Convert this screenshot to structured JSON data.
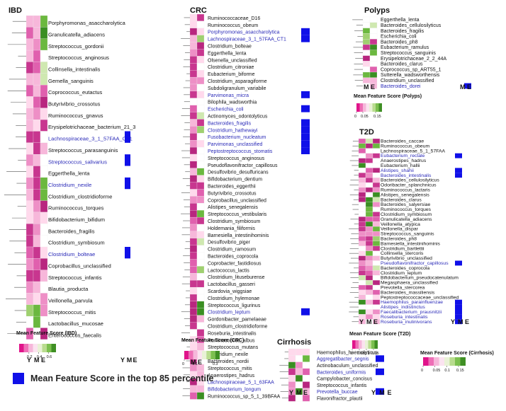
{
  "legend_text": "Mean Feature Score in the top 85 percentile",
  "colors": {
    "top85": "#1010e8",
    "highlight_label": "#2a2ab8",
    "normal_label": "#111111"
  },
  "chart_data": [
    {
      "type": "heatmap",
      "title": "IBD",
      "columns": [
        "Y",
        "M",
        "E"
      ],
      "colorbar_title": "Mean Feature Score\n(IBD)",
      "colorbar_ticks": [
        "0.2",
        "0.4",
        "0.6"
      ],
      "colorbar_range": [
        0,
        0.75
      ],
      "rows": [
        [
          "Porphyromonas_asaccharolytica",
          0
        ],
        [
          "Granulicatella_adiacens",
          0
        ],
        [
          "Streptococcus_gordonii",
          0
        ],
        [
          "Streptococcus_anginosus",
          0
        ],
        [
          "Collinsella_intestinalis",
          0
        ],
        [
          "Gemella_sanguinis",
          0
        ],
        [
          "Coprococcus_eutactus",
          0
        ],
        [
          "Butyrivibrio_crossotus",
          0
        ],
        [
          "Ruminococcus_gnavus",
          0
        ],
        [
          "Erysipelotrichaceae_bacterium_21_3",
          0
        ],
        [
          "Lachnospiraceae_3_1_57FAA_CT1",
          1
        ],
        [
          "Streptococcus_parasanguinis",
          0
        ],
        [
          "Streptococcus_salivarius",
          1
        ],
        [
          "Eggerthella_lenta",
          0
        ],
        [
          "Clostridium_nexile",
          1
        ],
        [
          "Clostridium_clostridioforme",
          0
        ],
        [
          "Ruminococcus_torques",
          0
        ],
        [
          "Bifidobacterium_bifidum",
          0
        ],
        [
          "Bacteroides_fragilis",
          0
        ],
        [
          "Clostridium_symbiosum",
          0
        ],
        [
          "Clostridium_bolteae",
          1
        ],
        [
          "Coprobacillus_unclassified",
          0
        ],
        [
          "Streptococcus_infantis",
          0
        ],
        [
          "Blautia_producta",
          0
        ],
        [
          "Veillonella_parvula",
          0
        ],
        [
          "Streptococcus_mitis",
          0
        ],
        [
          "Lactobacillus_mucosae",
          0
        ],
        [
          "Enterococcus_faecalis",
          0
        ]
      ]
    },
    {
      "type": "heatmap",
      "title": "CRC",
      "columns": [
        "M",
        "E"
      ],
      "colorbar_title": "Mean Feature Score\n(CRC)",
      "colorbar_ticks": [
        "0",
        "0.1",
        "0.3"
      ],
      "colorbar_range": [
        0,
        0.35
      ],
      "rows": [
        [
          "Ruminococcaceae_D16",
          0
        ],
        [
          "Ruminococcus_obeum",
          0
        ],
        [
          "Porphyromonas_asaccharolytica",
          1
        ],
        [
          "Lachnospiraceae_3_1_57FAA_CT1",
          1
        ],
        [
          "Clostridium_bolteae",
          0
        ],
        [
          "Eggerthella_lenta",
          0
        ],
        [
          "Olsenella_unclassified",
          0
        ],
        [
          "Clostridium_citroniae",
          0
        ],
        [
          "Eubacterium_biforme",
          0
        ],
        [
          "Clostridium_asparagiforme",
          0
        ],
        [
          "Subdoligranulum_variabile",
          0
        ],
        [
          "Parvimonas_micra",
          1
        ],
        [
          "Bilophila_wadsworthia",
          0
        ],
        [
          "Escherichia_coli",
          1
        ],
        [
          "Actinomyces_odontolyticus",
          0
        ],
        [
          "Bacteroides_fragilis",
          1
        ],
        [
          "Clostridium_hathewayi",
          1
        ],
        [
          "Fusobacterium_nucleatum",
          1
        ],
        [
          "Parvimonas_unclassified",
          1
        ],
        [
          "Peptostreptococcus_stomatis",
          1
        ],
        [
          "Streptococcus_anginosus",
          0
        ],
        [
          "Pseudoflavonifractor_capillosus",
          0
        ],
        [
          "Desulfovibrio_desulfuricans",
          0
        ],
        [
          "Bifidobacterium_dentium",
          0
        ],
        [
          "Bacteroides_eggerthii",
          0
        ],
        [
          "Butyrivibrio_crossotus",
          0
        ],
        [
          "Coprobacillus_unclassified",
          0
        ],
        [
          "Alistipes_senegalensis",
          0
        ],
        [
          "Streptococcus_vestibularis",
          0
        ],
        [
          "Clostridium_symbiosum",
          0
        ],
        [
          "Holdemania_filiformis",
          0
        ],
        [
          "Barnesiella_intestinihominis",
          0
        ],
        [
          "Desulfovibrio_piger",
          0
        ],
        [
          "Clostridium_ramosum",
          0
        ],
        [
          "Bacteroides_coprocola",
          0
        ],
        [
          "Coprobacter_fastidiosus",
          0
        ],
        [
          "Lactococcus_lactis",
          0
        ],
        [
          "Clostridium_lituseburense",
          0
        ],
        [
          "Lactobacillus_gasseri",
          0
        ],
        [
          "Scardovia_wiggsiae",
          0
        ],
        [
          "Clostridium_hylemonae",
          0
        ],
        [
          "Streptococcus_ligurinus",
          0
        ],
        [
          "Clostridium_leptum",
          1
        ],
        [
          "Gordonibacter_pamelaeae",
          0
        ],
        [
          "Clostridium_clostridioforme",
          0
        ],
        [
          "Roseburia_intestinalis",
          0
        ],
        [
          "Ruminococcus_albus",
          0
        ],
        [
          "Streptococcus_mutans",
          0
        ],
        [
          "Clostridium_nexile",
          0
        ],
        [
          "Bacteroides_nordii",
          0
        ],
        [
          "Streptococcus_mitis",
          0
        ],
        [
          "Anaerostipes_hadrus",
          0
        ],
        [
          "Lachnospiraceae_5_1_63FAA",
          1
        ],
        [
          "Bifidobacterium_longum",
          1
        ],
        [
          "Ruminococcus_sp_5_1_39BFAA",
          0
        ]
      ]
    },
    {
      "type": "heatmap",
      "title": "Polyps",
      "columns": [
        "M",
        "E"
      ],
      "colorbar_title": "Mean Feature Score (Polyps)",
      "colorbar_ticks": [
        "0",
        "0.05",
        "0.15"
      ],
      "colorbar_range": [
        0,
        0.2
      ],
      "rows": [
        [
          "Eggerthella_lenta",
          0
        ],
        [
          "Bacteroides_cellulosilyticus",
          0
        ],
        [
          "Bacteroides_fragilis",
          0
        ],
        [
          "Escherichia_coli",
          0
        ],
        [
          "Bacteroides_ph8",
          0
        ],
        [
          "Eubacterium_ramulus",
          0
        ],
        [
          "Streptococcus_sanguinis",
          0
        ],
        [
          "Erysipelotrichaceae_2_2_44A",
          0
        ],
        [
          "Bacteroides_clarus",
          0
        ],
        [
          "Coprococcus_sp_ART55_1",
          0
        ],
        [
          "Sutterella_wadsworthensis",
          0
        ],
        [
          "Clostridium_unclassified",
          0
        ],
        [
          "Bacteroides_dorei",
          1
        ]
      ]
    },
    {
      "type": "heatmap",
      "title": "T2D",
      "columns": [
        "Y",
        "M",
        "E"
      ],
      "colorbar_title": "Mean Feature Score (T2D)",
      "colorbar_ticks": [
        "0",
        "0.05",
        "0.1",
        "0.15"
      ],
      "colorbar_range": [
        0,
        0.18
      ],
      "rows": [
        [
          "Bacteroides_caccae",
          0
        ],
        [
          "Ruminococcus_obeum",
          0
        ],
        [
          "Lachnospiraceae_5_1_57FAA",
          0
        ],
        [
          "Eubacterium_rectale",
          1
        ],
        [
          "Anaerostipes_hadrus",
          0
        ],
        [
          "Eubacterium_hallii",
          0
        ],
        [
          "Alistipes_shahii",
          1
        ],
        [
          "Bacteroides_intestinalis",
          1
        ],
        [
          "Bacteroides_cellulosilyticus",
          0
        ],
        [
          "Odoribacter_splanchnicus",
          0
        ],
        [
          "Ruminococcus_lactaris",
          0
        ],
        [
          "Alistipes_senegalensis",
          0
        ],
        [
          "Bacteroides_clarus",
          0
        ],
        [
          "Bacteroides_salyersiae",
          0
        ],
        [
          "Ruminococcus_torques",
          0
        ],
        [
          "Clostridium_symbiosum",
          0
        ],
        [
          "Granulicatella_adiacens",
          0
        ],
        [
          "Veillonella_atypica",
          0
        ],
        [
          "Veillonella_dispar",
          0
        ],
        [
          "Streptococcus_sanguinis",
          0
        ],
        [
          "Bacteroides_ph8",
          0
        ],
        [
          "Barnesiella_intestinihominis",
          0
        ],
        [
          "Clostridium_bartlettii",
          0
        ],
        [
          "Collinsella_stercoris",
          0
        ],
        [
          "Butyrivibrio_unclassified",
          0
        ],
        [
          "Pseudoflavonifractor_capillosus",
          1
        ],
        [
          "Bacteroides_coprocola",
          0
        ],
        [
          "Clostridium_leptum",
          0
        ],
        [
          "Bifidobacterium_pseudocatenulatum",
          0
        ],
        [
          "Megasphaera_unclassified",
          0
        ],
        [
          "Prevotella_stercorea",
          0
        ],
        [
          "Bacteroides_massiliensis",
          0
        ],
        [
          "Peptostreptococcaceae_unclassified",
          0
        ],
        [
          "Haemophilus_parainfluenzae",
          1
        ],
        [
          "Alistipes_indistinctus",
          1
        ],
        [
          "Faecalibacterium_prausnitzii",
          1
        ],
        [
          "Roseburia_intestinalis",
          1
        ],
        [
          "Roseburia_inulinivorans",
          1
        ]
      ]
    },
    {
      "type": "heatmap",
      "title": "Cirrhosis",
      "columns": [
        "Y",
        "M",
        "E"
      ],
      "colorbar_title": "Mean Feature Score (Cirrhosis)",
      "colorbar_ticks": [
        "0",
        "0.05",
        "0.1",
        "0.15"
      ],
      "colorbar_range": [
        0,
        0.18
      ],
      "rows": [
        [
          "Haemophilus_haemolyticus",
          0
        ],
        [
          "Aggregatibacter_segnis",
          1
        ],
        [
          "Actinobaculum_unclassified",
          0
        ],
        [
          "Bacteroides_uniformis",
          1
        ],
        [
          "Campylobacter_concisus",
          0
        ],
        [
          "Streptococcus_infantis",
          0
        ],
        [
          "Prevotella_buccae",
          1
        ],
        [
          "Flavonifractor_plautii",
          0
        ]
      ]
    }
  ]
}
